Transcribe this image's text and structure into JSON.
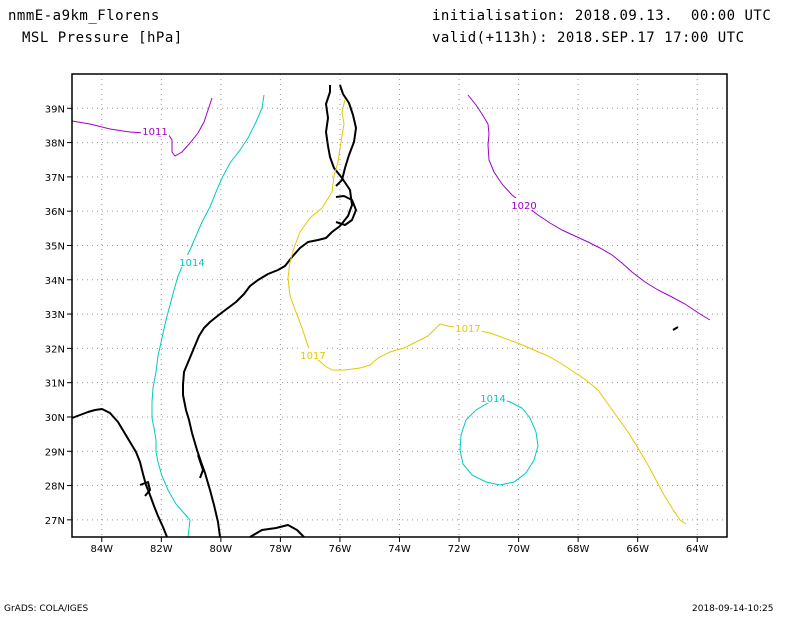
{
  "header": {
    "model": "nmmE-a9km_Florens",
    "field": "MSL Pressure [hPa]",
    "init": "initialisation: 2018.09.13.  00:00 UTC",
    "valid": "valid(+113h): 2018.SEP.17 17:00 UTC"
  },
  "footer": {
    "left": "GrADS: COLA/IGES",
    "right": "2018-09-14-10:25"
  },
  "axes": {
    "lon_range": [
      -85,
      -63
    ],
    "lat_range": [
      26.5,
      40
    ],
    "lon_ticks": [
      "84W",
      "82W",
      "80W",
      "78W",
      "76W",
      "74W",
      "72W",
      "70W",
      "68W",
      "66W",
      "64W"
    ],
    "lat_ticks": [
      "39N",
      "38N",
      "37N",
      "36N",
      "35N",
      "34N",
      "33N",
      "32N",
      "31N",
      "30N",
      "29N",
      "28N",
      "27N"
    ]
  },
  "contours": [
    {
      "label": "1011",
      "color": "#a000c8"
    },
    {
      "label": "1020",
      "color": "#a000c8"
    },
    {
      "label": "1014",
      "color": "#00c8c8"
    },
    {
      "label": "1014",
      "color": "#00c8c8"
    },
    {
      "label": "1017",
      "color": "#e6c800"
    },
    {
      "label": "1017",
      "color": "#e6c800"
    }
  ]
}
